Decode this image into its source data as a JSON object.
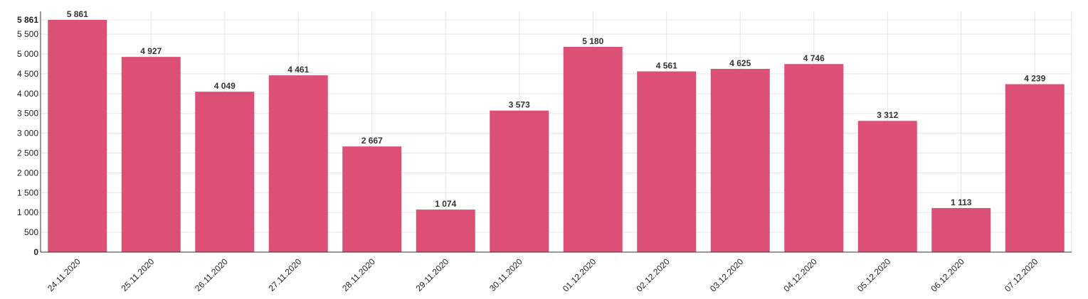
{
  "chart_data": {
    "type": "bar",
    "categories": [
      "24.11.2020",
      "25.11.2020",
      "26.11.2020",
      "27.11.2020",
      "28.11.2020",
      "29.11.2020",
      "30.11.2020",
      "01.12.2020",
      "02.12.2020",
      "03.12.2020",
      "04.12.2020",
      "05.12.2020",
      "06.12.2020",
      "07.12.2020"
    ],
    "values": [
      5861,
      4927,
      4049,
      4461,
      2667,
      1074,
      3573,
      5180,
      4561,
      4625,
      4746,
      3312,
      1113,
      4239
    ],
    "value_labels": [
      "5 861",
      "4 927",
      "4 049",
      "4 461",
      "2 667",
      "1 074",
      "3 573",
      "5 180",
      "4 561",
      "4 625",
      "4 746",
      "3 312",
      "1 113",
      "4 239"
    ],
    "yticks": [
      0,
      500,
      1000,
      1500,
      2000,
      2500,
      3000,
      3500,
      4000,
      4500,
      5000,
      5500,
      5861
    ],
    "ytick_labels": [
      "0",
      "500",
      "1 000",
      "1 500",
      "2 000",
      "2 500",
      "3 000",
      "3 500",
      "4 000",
      "4 500",
      "5 000",
      "5 500",
      "5 861"
    ],
    "ylim": [
      0,
      5861
    ],
    "grid": true,
    "title": "",
    "xlabel": "",
    "ylabel": "",
    "bar_color": "#dc4a71"
  }
}
